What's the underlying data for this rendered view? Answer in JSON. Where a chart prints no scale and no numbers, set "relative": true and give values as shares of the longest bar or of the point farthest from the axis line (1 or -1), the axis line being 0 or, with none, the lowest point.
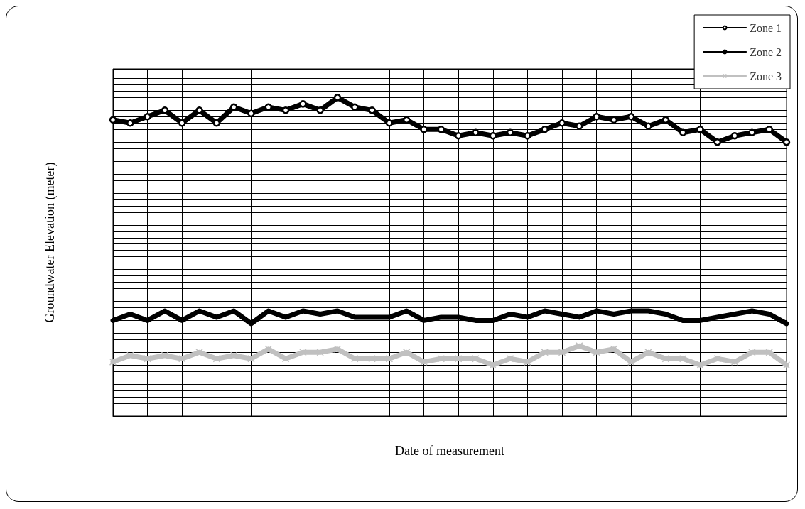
{
  "chart_data": {
    "type": "line",
    "relative": true,
    "xlabel": "Date of measurement",
    "ylabel": "Groundwater Elevation (meter)",
    "grid": true,
    "legend": "top right",
    "categories": [
      null,
      null,
      null,
      null,
      null,
      null,
      null,
      null,
      null,
      null,
      null,
      null,
      null,
      null,
      null,
      null,
      null,
      null,
      null,
      null,
      null,
      null,
      null,
      null,
      null,
      null,
      null,
      null,
      null,
      null,
      null,
      null,
      null,
      null,
      null,
      null,
      null,
      null,
      null,
      null
    ],
    "series": [
      {
        "name": "Zone 1",
        "color": "#000000",
        "marker": "circle",
        "values": [
          0.93,
          0.92,
          0.94,
          0.96,
          0.92,
          0.96,
          0.92,
          0.97,
          0.95,
          0.97,
          0.96,
          0.98,
          0.96,
          1.0,
          0.97,
          0.96,
          0.92,
          0.93,
          0.9,
          0.9,
          0.88,
          0.89,
          0.88,
          0.89,
          0.88,
          0.9,
          0.92,
          0.91,
          0.94,
          0.93,
          0.94,
          0.91,
          0.93,
          0.89,
          0.9,
          0.86,
          0.88,
          0.89,
          0.9,
          0.86
        ]
      },
      {
        "name": "Zone 2",
        "color": "#000000",
        "marker": "none",
        "values": [
          0.3,
          0.32,
          0.3,
          0.33,
          0.3,
          0.33,
          0.31,
          0.33,
          0.29,
          0.33,
          0.31,
          0.33,
          0.32,
          0.33,
          0.31,
          0.31,
          0.31,
          0.33,
          0.3,
          0.31,
          0.31,
          0.3,
          0.3,
          0.32,
          0.31,
          0.33,
          0.32,
          0.31,
          0.33,
          0.32,
          0.33,
          0.33,
          0.32,
          0.3,
          0.3,
          0.31,
          0.32,
          0.33,
          0.32,
          0.29
        ]
      },
      {
        "name": "Zone 3",
        "color": "#c0c0c0",
        "marker": "cross",
        "values": [
          0.17,
          0.19,
          0.18,
          0.19,
          0.18,
          0.2,
          0.18,
          0.19,
          0.18,
          0.21,
          0.18,
          0.2,
          0.2,
          0.21,
          0.18,
          0.18,
          0.18,
          0.2,
          0.17,
          0.18,
          0.18,
          0.18,
          0.16,
          0.18,
          0.17,
          0.2,
          0.2,
          0.22,
          0.2,
          0.21,
          0.17,
          0.2,
          0.18,
          0.18,
          0.16,
          0.18,
          0.17,
          0.2,
          0.2,
          0.16
        ]
      }
    ]
  }
}
